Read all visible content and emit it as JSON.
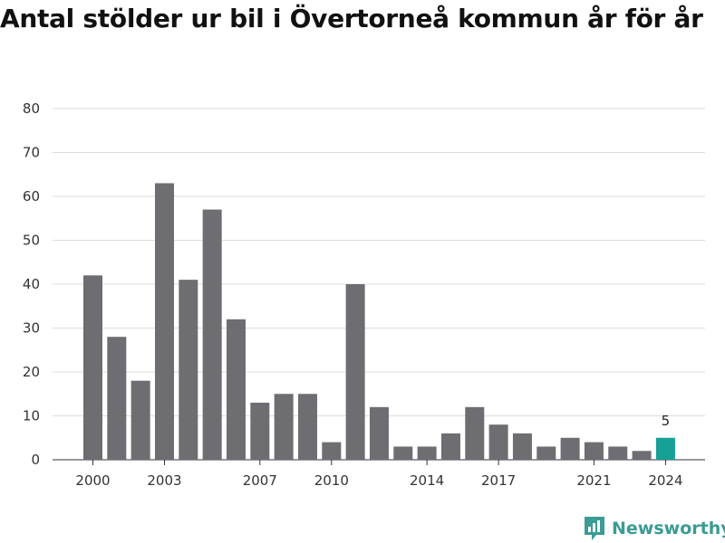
{
  "title": "Antal stölder ur bil i Övertorneå kommun år för år",
  "brand": {
    "name": "Newsworthy",
    "icon": "newsworthy-logo-icon",
    "color": "#3a9c94"
  },
  "colors": {
    "bar": "#6e6d72",
    "highlight": "#16a096",
    "grid": "#dddddd"
  },
  "chart_data": {
    "type": "bar",
    "title": "Antal stölder ur bil i Övertorneå kommun år för år",
    "xlabel": "",
    "ylabel": "",
    "ylim": [
      0,
      80
    ],
    "yticks": [
      0,
      10,
      20,
      30,
      40,
      50,
      60,
      70,
      80
    ],
    "xtick_labels": [
      "2000",
      "2003",
      "2007",
      "2010",
      "2014",
      "2017",
      "2021",
      "2024"
    ],
    "categories": [
      "2000",
      "2001",
      "2002",
      "2003",
      "2004",
      "2005",
      "2006",
      "2007",
      "2008",
      "2009",
      "2010",
      "2011",
      "2012",
      "2013",
      "2014",
      "2015",
      "2016",
      "2017",
      "2018",
      "2019",
      "2020",
      "2021",
      "2022",
      "2023",
      "2024"
    ],
    "values": [
      42,
      28,
      18,
      63,
      41,
      57,
      32,
      13,
      15,
      15,
      4,
      40,
      12,
      3,
      3,
      6,
      12,
      8,
      6,
      3,
      5,
      4,
      3,
      2,
      5
    ],
    "highlight": {
      "category": "2024",
      "label": "5"
    },
    "grid": true
  }
}
